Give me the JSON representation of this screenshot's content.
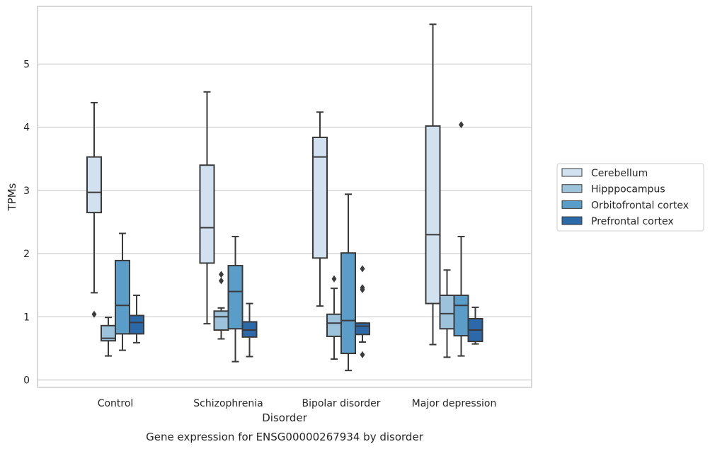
{
  "chart_data": {
    "type": "box",
    "xlabel": "Disorder",
    "ylabel": "TPMs",
    "caption": "Gene expression for ENSG00000267934 by disorder",
    "categories": [
      "Control",
      "Schizophrenia",
      "Bipolar disorder",
      "Major depression"
    ],
    "ylim": [
      -0.1,
      5.9
    ],
    "yticks": [
      0,
      1,
      2,
      3,
      4,
      5
    ],
    "grid": true,
    "legend": {
      "position": "right"
    },
    "series": [
      {
        "name": "Cerebellum",
        "color": "#d2e1f0",
        "boxes": [
          {
            "whisker_low": 1.38,
            "q1": 2.65,
            "median": 2.97,
            "q3": 3.53,
            "whisker_high": 4.39,
            "outliers": [
              1.04
            ]
          },
          {
            "whisker_low": 0.89,
            "q1": 1.85,
            "median": 2.41,
            "q3": 3.4,
            "whisker_high": 4.56,
            "outliers": []
          },
          {
            "whisker_low": 1.17,
            "q1": 1.93,
            "median": 3.53,
            "q3": 3.84,
            "whisker_high": 4.24,
            "outliers": []
          },
          {
            "whisker_low": 0.56,
            "q1": 1.21,
            "median": 2.3,
            "q3": 4.02,
            "whisker_high": 5.63,
            "outliers": []
          }
        ]
      },
      {
        "name": "Hipppocampus",
        "color": "#9cc3db",
        "boxes": [
          {
            "whisker_low": 0.38,
            "q1": 0.62,
            "median": 0.66,
            "q3": 0.86,
            "whisker_high": 0.99,
            "outliers": []
          },
          {
            "whisker_low": 0.65,
            "q1": 0.79,
            "median": 1.0,
            "q3": 1.09,
            "whisker_high": 1.14,
            "outliers": [
              1.57,
              1.67
            ]
          },
          {
            "whisker_low": 0.33,
            "q1": 0.69,
            "median": 0.9,
            "q3": 1.04,
            "whisker_high": 1.45,
            "outliers": [
              1.6
            ]
          },
          {
            "whisker_low": 0.36,
            "q1": 0.81,
            "median": 1.05,
            "q3": 1.34,
            "whisker_high": 1.74,
            "outliers": []
          }
        ]
      },
      {
        "name": "Orbitofrontal cortex",
        "color": "#5a9dc8",
        "boxes": [
          {
            "whisker_low": 0.47,
            "q1": 0.73,
            "median": 1.18,
            "q3": 1.89,
            "whisker_high": 2.32,
            "outliers": []
          },
          {
            "whisker_low": 0.29,
            "q1": 0.81,
            "median": 1.4,
            "q3": 1.81,
            "whisker_high": 2.27,
            "outliers": []
          },
          {
            "whisker_low": 0.15,
            "q1": 0.42,
            "median": 0.94,
            "q3": 2.01,
            "whisker_high": 2.94,
            "outliers": []
          },
          {
            "whisker_low": 0.38,
            "q1": 0.7,
            "median": 1.18,
            "q3": 1.34,
            "whisker_high": 2.27,
            "outliers": [
              4.04
            ]
          }
        ]
      },
      {
        "name": "Prefrontal cortex",
        "color": "#2c69a9",
        "boxes": [
          {
            "whisker_low": 0.59,
            "q1": 0.73,
            "median": 0.91,
            "q3": 1.02,
            "whisker_high": 1.34,
            "outliers": []
          },
          {
            "whisker_low": 0.37,
            "q1": 0.68,
            "median": 0.79,
            "q3": 0.92,
            "whisker_high": 1.21,
            "outliers": []
          },
          {
            "whisker_low": 0.6,
            "q1": 0.72,
            "median": 0.85,
            "q3": 0.9,
            "whisker_high": 0.9,
            "outliers": [
              0.4,
              1.43,
              1.46,
              1.76
            ]
          },
          {
            "whisker_low": 0.57,
            "q1": 0.61,
            "median": 0.79,
            "q3": 0.97,
            "whisker_high": 1.15,
            "outliers": []
          }
        ]
      }
    ]
  }
}
